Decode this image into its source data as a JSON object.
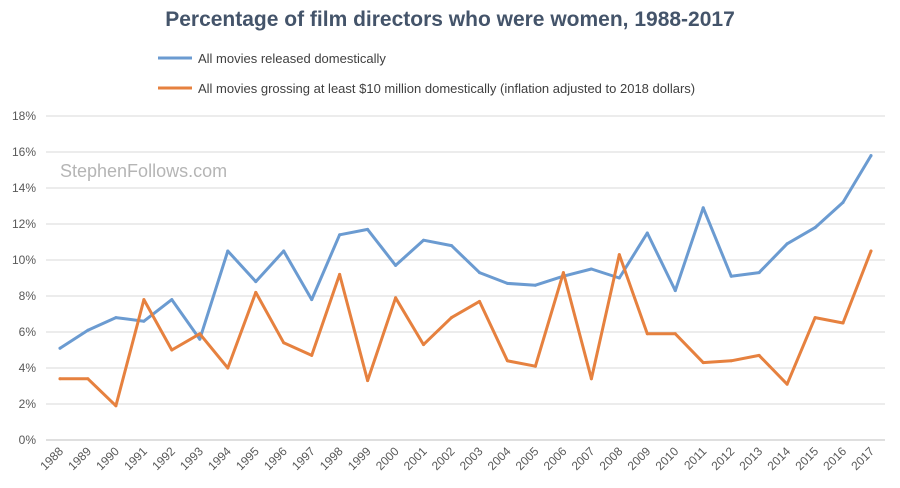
{
  "colors": {
    "series_1": "#6b9bd1",
    "series_2": "#e6813f"
  },
  "watermark": "StephenFollows.com",
  "chart_data": {
    "type": "line",
    "title": "Percentage of film directors who were women, 1988-2017",
    "xlabel": "",
    "ylabel": "",
    "ylim": [
      0,
      18
    ],
    "y_ticks": [
      "0%",
      "2%",
      "4%",
      "6%",
      "8%",
      "10%",
      "12%",
      "14%",
      "16%",
      "18%"
    ],
    "y_tick_values": [
      0,
      2,
      4,
      6,
      8,
      10,
      12,
      14,
      16,
      18
    ],
    "grid": true,
    "legend_position": "top",
    "categories": [
      "1988",
      "1989",
      "1990",
      "1991",
      "1992",
      "1993",
      "1994",
      "1995",
      "1996",
      "1997",
      "1998",
      "1999",
      "2000",
      "2001",
      "2002",
      "2003",
      "2004",
      "2005",
      "2006",
      "2007",
      "2008",
      "2009",
      "2010",
      "2011",
      "2012",
      "2013",
      "2014",
      "2015",
      "2016",
      "2017"
    ],
    "series": [
      {
        "name": "All movies released domestically",
        "values": [
          5.1,
          6.1,
          6.8,
          6.6,
          7.8,
          5.6,
          10.5,
          8.8,
          10.5,
          7.8,
          11.4,
          11.7,
          9.7,
          11.1,
          10.8,
          9.3,
          8.7,
          8.6,
          9.1,
          9.5,
          9.0,
          11.5,
          8.3,
          12.9,
          9.1,
          9.3,
          10.9,
          11.8,
          13.2,
          15.8
        ]
      },
      {
        "name": "All movies grossing at least $10 million domestically (inflation adjusted to 2018 dollars)",
        "values": [
          3.4,
          3.4,
          1.9,
          7.8,
          5.0,
          5.9,
          4.0,
          8.2,
          5.4,
          4.7,
          9.2,
          3.3,
          7.9,
          5.3,
          6.8,
          7.7,
          4.4,
          4.1,
          9.3,
          3.4,
          10.3,
          5.9,
          5.9,
          4.3,
          4.4,
          4.7,
          3.1,
          6.8,
          6.5,
          10.5
        ]
      }
    ]
  }
}
